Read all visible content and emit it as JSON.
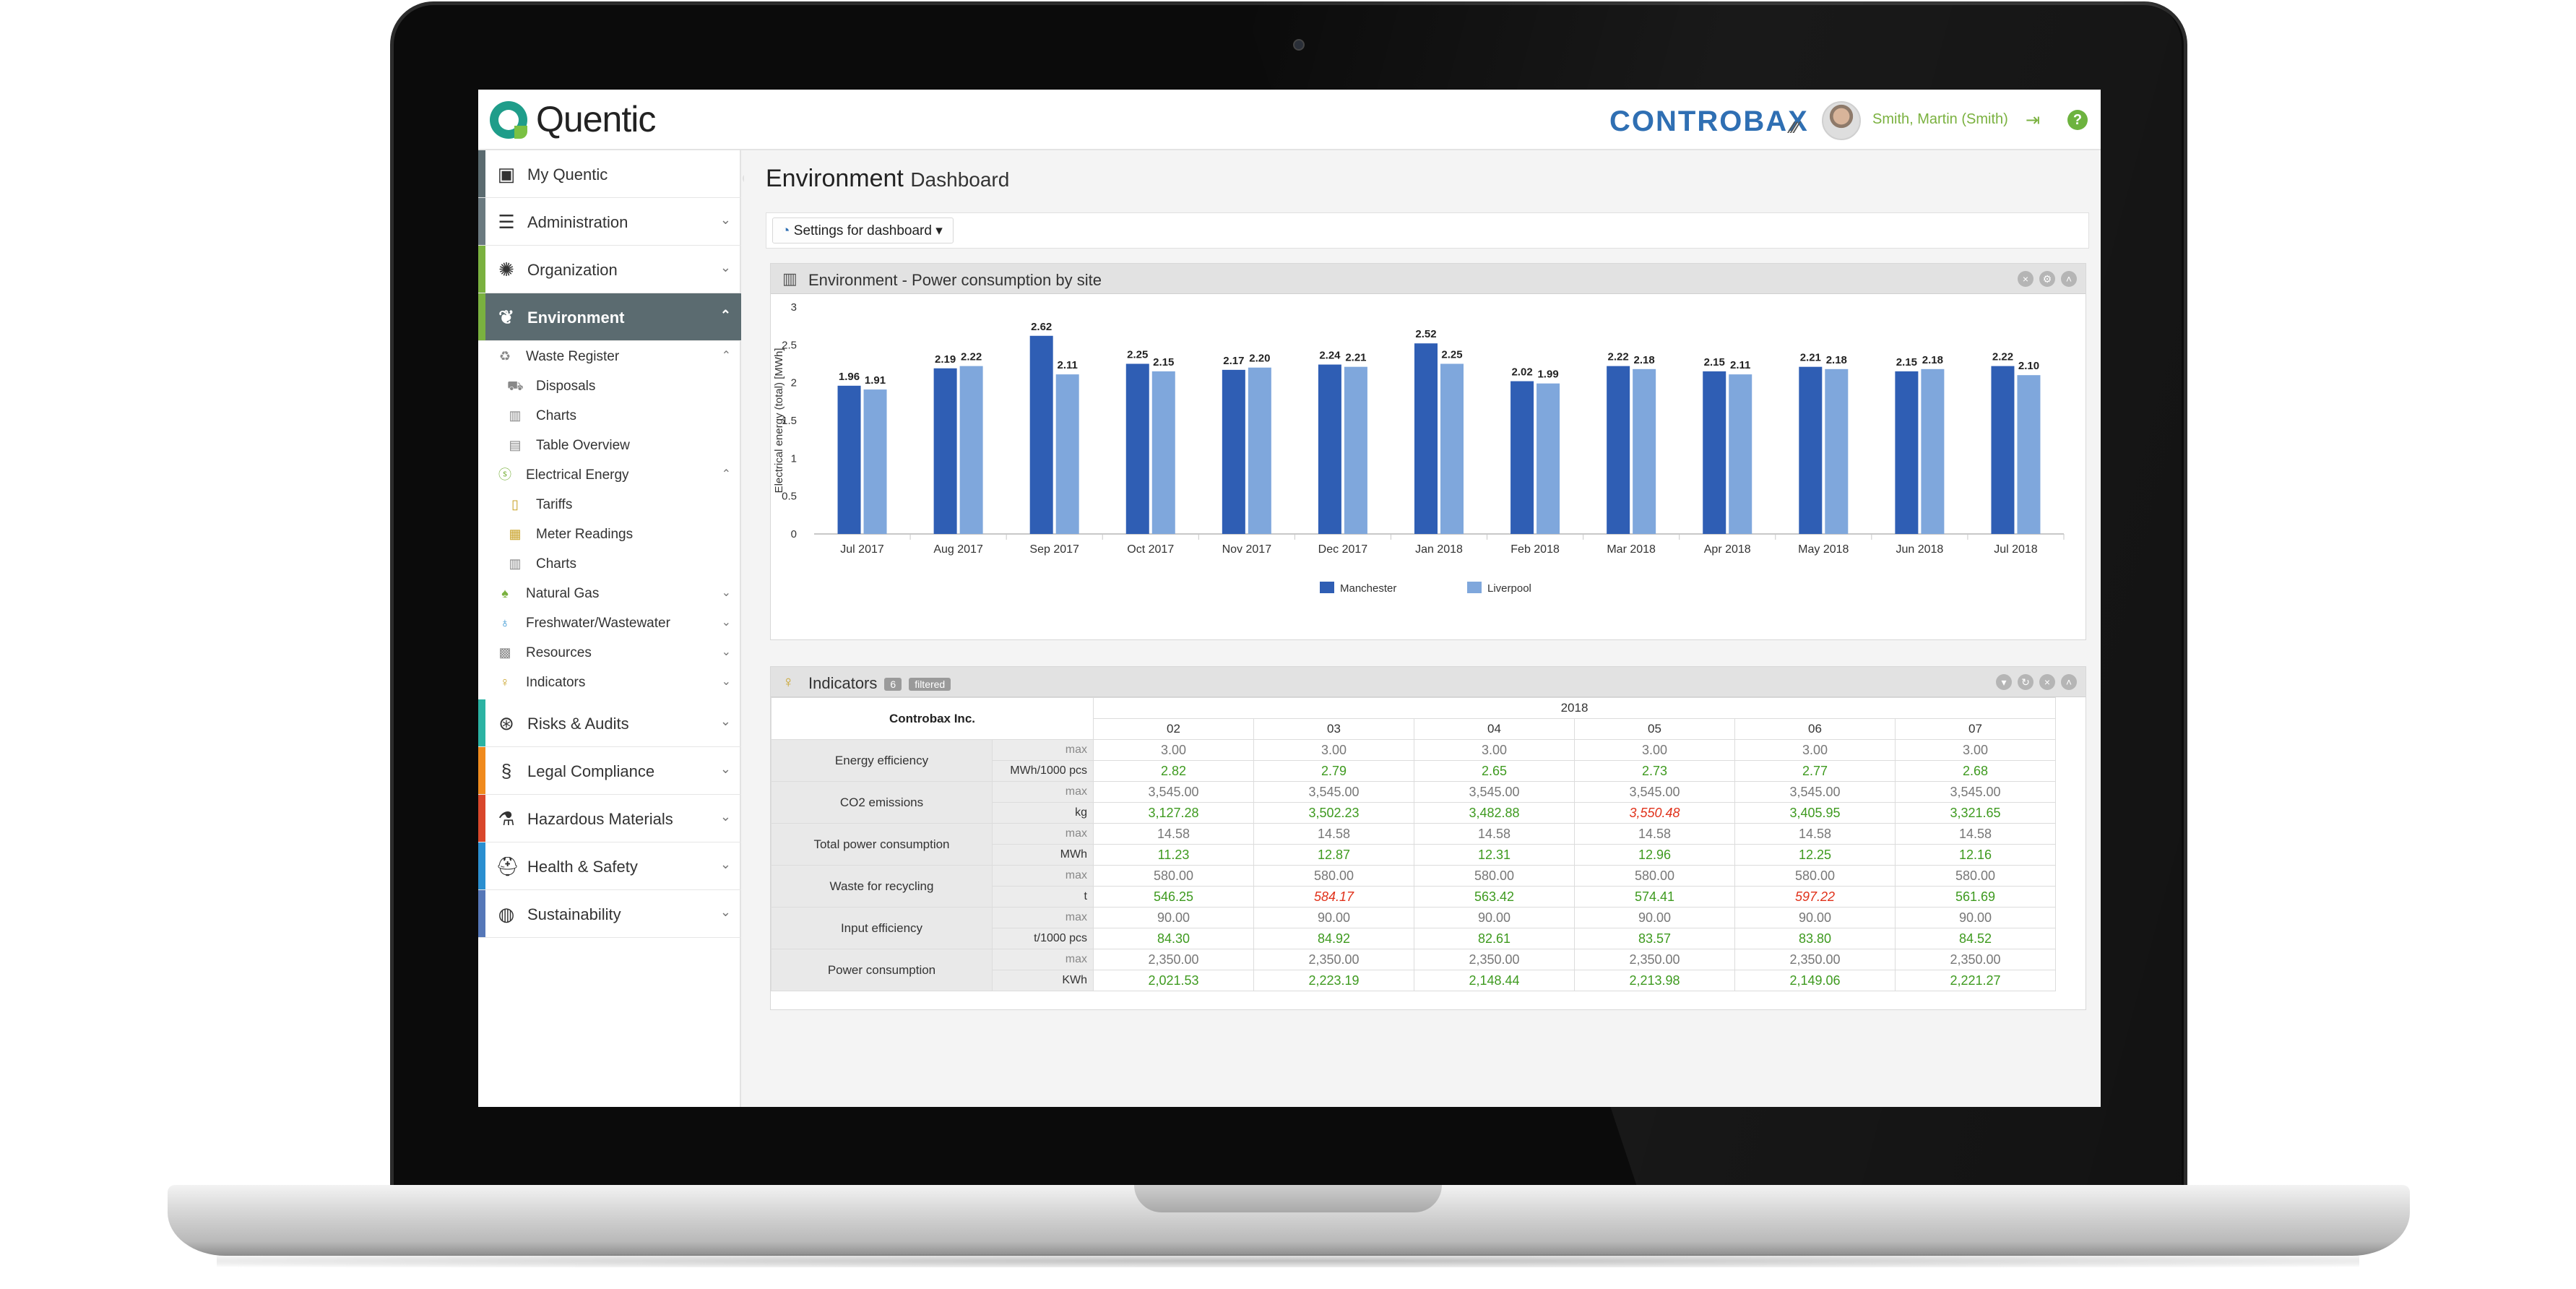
{
  "app": {
    "logo_text": "Quentic",
    "brand": "CONTROBAX",
    "user_name": "Smith, Martin (Smith)"
  },
  "sidebar": {
    "main_items": [
      {
        "label": "My Quentic",
        "icon": "monitor-icon",
        "color": "#5b6b70"
      },
      {
        "label": "Administration",
        "icon": "menu-icon",
        "color": "#6b7a80"
      },
      {
        "label": "Organization",
        "icon": "org-icon",
        "color": "#7ab13f"
      },
      {
        "label": "Environment",
        "icon": "leaf-icon",
        "color": "#7ab13f"
      },
      {
        "label": "Risks & Audits",
        "icon": "risk-icon",
        "color": "#2bb3a3"
      },
      {
        "label": "Legal Compliance",
        "icon": "section-icon",
        "color": "#f08a1d"
      },
      {
        "label": "Hazardous Materials",
        "icon": "flask-icon",
        "color": "#d9472b"
      },
      {
        "label": "Health & Safety",
        "icon": "helmet-icon",
        "color": "#2a8fd0"
      },
      {
        "label": "Sustainability",
        "icon": "globe-icon",
        "color": "#5577b8"
      }
    ],
    "sub_items": [
      {
        "label": "Waste Register",
        "icon": "waste-icon",
        "level": 1
      },
      {
        "label": "Disposals",
        "icon": "truck-icon",
        "level": 2
      },
      {
        "label": "Charts",
        "icon": "chart-icon",
        "level": 2
      },
      {
        "label": "Table Overview",
        "icon": "table-icon",
        "level": 2
      },
      {
        "label": "Electrical Energy",
        "icon": "energy-icon",
        "level": 1
      },
      {
        "label": "Tariffs",
        "icon": "tariff-icon",
        "level": 2
      },
      {
        "label": "Meter Readings",
        "icon": "meter-icon",
        "level": 2
      },
      {
        "label": "Charts",
        "icon": "chart-icon",
        "level": 2
      },
      {
        "label": "Natural Gas",
        "icon": "flame-icon",
        "level": 1
      },
      {
        "label": "Freshwater/Wastewater",
        "icon": "drop-icon",
        "level": 1
      },
      {
        "label": "Resources",
        "icon": "resources-icon",
        "level": 1
      },
      {
        "label": "Indicators",
        "icon": "indicator-icon",
        "level": 1
      }
    ]
  },
  "page": {
    "title": "Environment",
    "subtitle": "Dashboard",
    "settings_button": "Settings for dashboard"
  },
  "chart_panel": {
    "title": "Environment - Power consumption by site"
  },
  "chart_data": {
    "type": "bar",
    "title": "",
    "xlabel": "",
    "ylabel": "Electrical energy (total) [MWh]",
    "ylim": [
      0,
      3
    ],
    "yticks": [
      "0",
      "0.5",
      "1",
      "1.5",
      "2",
      "2.5",
      "3"
    ],
    "categories": [
      "Jul 2017",
      "Aug 2017",
      "Sep 2017",
      "Oct 2017",
      "Nov 2017",
      "Dec 2017",
      "Jan 2018",
      "Feb 2018",
      "Mar 2018",
      "Apr 2018",
      "May 2018",
      "Jun 2018",
      "Jul 2018"
    ],
    "series": [
      {
        "name": "Manchester",
        "color": "#2f5eb4",
        "values": [
          1.96,
          2.19,
          2.62,
          2.25,
          2.17,
          2.24,
          2.52,
          2.02,
          2.22,
          2.15,
          2.21,
          2.15,
          2.22
        ]
      },
      {
        "name": "Liverpool",
        "color": "#7fa7dc",
        "values": [
          1.91,
          2.22,
          2.11,
          2.15,
          2.2,
          2.21,
          2.25,
          1.99,
          2.18,
          2.11,
          2.18,
          2.18,
          2.1
        ]
      }
    ],
    "legend_position": "bottom"
  },
  "indicators_panel": {
    "title": "Indicators",
    "count_badge": "6",
    "filter_badge": "filtered",
    "company": "Controbax Inc.",
    "year": "2018",
    "months": [
      "02",
      "03",
      "04",
      "05",
      "06",
      "07"
    ],
    "rows": [
      {
        "label": "Energy efficiency",
        "unit": "MWh/1000 pcs",
        "max": [
          "3.00",
          "3.00",
          "3.00",
          "3.00",
          "3.00",
          "3.00"
        ],
        "values": [
          "2.82",
          "2.79",
          "2.65",
          "2.73",
          "2.77",
          "2.68"
        ],
        "exceeded": [
          false,
          false,
          false,
          false,
          false,
          false
        ]
      },
      {
        "label": "CO2 emissions",
        "unit": "kg",
        "max": [
          "3,545.00",
          "3,545.00",
          "3,545.00",
          "3,545.00",
          "3,545.00",
          "3,545.00"
        ],
        "values": [
          "3,127.28",
          "3,502.23",
          "3,482.88",
          "3,550.48",
          "3,405.95",
          "3,321.65"
        ],
        "exceeded": [
          false,
          false,
          false,
          true,
          false,
          false
        ]
      },
      {
        "label": "Total power consumption",
        "unit": "MWh",
        "max": [
          "14.58",
          "14.58",
          "14.58",
          "14.58",
          "14.58",
          "14.58"
        ],
        "values": [
          "11.23",
          "12.87",
          "12.31",
          "12.96",
          "12.25",
          "12.16"
        ],
        "exceeded": [
          false,
          false,
          false,
          false,
          false,
          false
        ]
      },
      {
        "label": "Waste for recycling",
        "unit": "t",
        "max": [
          "580.00",
          "580.00",
          "580.00",
          "580.00",
          "580.00",
          "580.00"
        ],
        "values": [
          "546.25",
          "584.17",
          "563.42",
          "574.41",
          "597.22",
          "561.69"
        ],
        "exceeded": [
          false,
          true,
          false,
          false,
          true,
          false
        ]
      },
      {
        "label": "Input efficiency",
        "unit": "t/1000 pcs",
        "max": [
          "90.00",
          "90.00",
          "90.00",
          "90.00",
          "90.00",
          "90.00"
        ],
        "values": [
          "84.30",
          "84.92",
          "82.61",
          "83.57",
          "83.80",
          "84.52"
        ],
        "exceeded": [
          false,
          false,
          false,
          false,
          false,
          false
        ]
      },
      {
        "label": "Power consumption",
        "unit": "KWh",
        "max": [
          "2,350.00",
          "2,350.00",
          "2,350.00",
          "2,350.00",
          "2,350.00",
          "2,350.00"
        ],
        "values": [
          "2,021.53",
          "2,223.19",
          "2,148.44",
          "2,213.98",
          "2,149.06",
          "2,221.27"
        ],
        "exceeded": [
          false,
          false,
          false,
          false,
          false,
          false
        ]
      }
    ],
    "max_label": "max"
  },
  "colors": {
    "accent_green": "#7ab13f",
    "brand_blue": "#2f6fb3",
    "ok_green": "#3e9a1f",
    "exceeded_red": "#e0311a"
  }
}
